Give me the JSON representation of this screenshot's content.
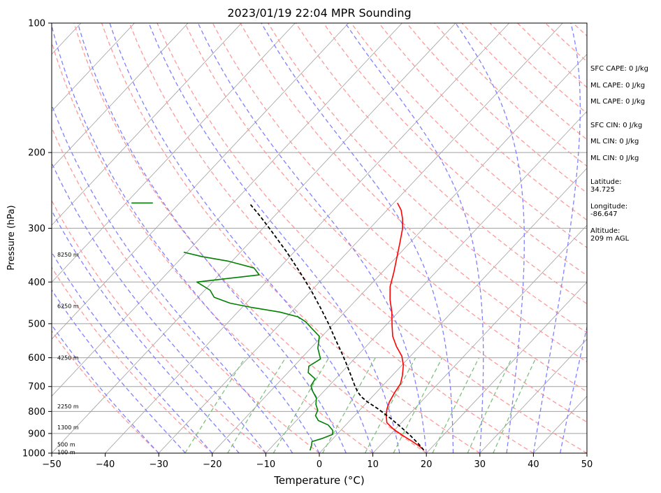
{
  "chart_data": {
    "type": "skew-t",
    "title": "2023/01/19 22:04 MPR Sounding",
    "xlabel": "Temperature (°C)",
    "ylabel": "Pressure (hPa)",
    "xlim": [
      -50,
      50
    ],
    "ylim": [
      1000,
      100
    ],
    "y_scale": "log",
    "grid": true,
    "x_ticks": [
      -50,
      -40,
      -30,
      -20,
      -10,
      0,
      10,
      20,
      30,
      40,
      50
    ],
    "y_ticks": [
      100,
      200,
      300,
      400,
      500,
      600,
      700,
      800,
      900,
      1000
    ],
    "series": [
      {
        "color": "#ff0000",
        "points": [
          {
            "p": 984,
            "t": 19.0
          },
          {
            "p": 965,
            "t": 17.6
          },
          {
            "p": 940,
            "t": 15.4
          },
          {
            "p": 910,
            "t": 12.5
          },
          {
            "p": 880,
            "t": 9.7
          },
          {
            "p": 850,
            "t": 7.3
          },
          {
            "p": 820,
            "t": 6.0
          },
          {
            "p": 790,
            "t": 4.9
          },
          {
            "p": 760,
            "t": 4.1
          },
          {
            "p": 720,
            "t": 3.4
          },
          {
            "p": 690,
            "t": 3.0
          },
          {
            "p": 660,
            "t": 1.9
          },
          {
            "p": 625,
            "t": 0.3
          },
          {
            "p": 595,
            "t": -1.6
          },
          {
            "p": 565,
            "t": -4.3
          },
          {
            "p": 535,
            "t": -6.8
          },
          {
            "p": 505,
            "t": -8.8
          },
          {
            "p": 470,
            "t": -11.2
          },
          {
            "p": 440,
            "t": -13.7
          },
          {
            "p": 410,
            "t": -16.0
          },
          {
            "p": 380,
            "t": -17.8
          },
          {
            "p": 350,
            "t": -19.9
          },
          {
            "p": 325,
            "t": -21.8
          },
          {
            "p": 300,
            "t": -23.9
          },
          {
            "p": 285,
            "t": -25.6
          },
          {
            "p": 272,
            "t": -27.4
          },
          {
            "p": 262,
            "t": -29.3
          }
        ]
      },
      {
        "color": "#008000",
        "points": [
          {
            "p": 986,
            "t": -2.2
          },
          {
            "p": 960,
            "t": -2.8
          },
          {
            "p": 940,
            "t": -3.4
          },
          {
            "p": 925,
            "t": -2.1
          },
          {
            "p": 905,
            "t": -0.8
          },
          {
            "p": 885,
            "t": -1.5
          },
          {
            "p": 860,
            "t": -3.3
          },
          {
            "p": 840,
            "t": -5.9
          },
          {
            "p": 818,
            "t": -7.3
          },
          {
            "p": 795,
            "t": -7.8
          },
          {
            "p": 770,
            "t": -9.2
          },
          {
            "p": 745,
            "t": -10.2
          },
          {
            "p": 718,
            "t": -12.1
          },
          {
            "p": 697,
            "t": -13.4
          },
          {
            "p": 672,
            "t": -13.8
          },
          {
            "p": 650,
            "t": -16.2
          },
          {
            "p": 628,
            "t": -17.2
          },
          {
            "p": 604,
            "t": -16.3
          },
          {
            "p": 570,
            "t": -18.7
          },
          {
            "p": 535,
            "t": -20.5
          },
          {
            "p": 515,
            "t": -23.0
          },
          {
            "p": 495,
            "t": -25.6
          },
          {
            "p": 482,
            "t": -27.9
          },
          {
            "p": 470,
            "t": -32.1
          },
          {
            "p": 458,
            "t": -38.4
          },
          {
            "p": 448,
            "t": -43.0
          },
          {
            "p": 434,
            "t": -47.0
          },
          {
            "p": 418,
            "t": -49.0
          },
          {
            "p": 400,
            "t": -52.9
          },
          {
            "p": 385,
            "t": -42.5
          },
          {
            "p": 371,
            "t": -44.7
          },
          {
            "p": 358,
            "t": -50.6
          },
          {
            "p": 349,
            "t": -56.5
          },
          {
            "p": 341,
            "t": -60.6
          }
        ]
      },
      {
        "color": "#000000",
        "dashed": true,
        "points": [
          {
            "p": 984,
            "t": 19.0
          },
          {
            "p": 950,
            "t": 16.8
          },
          {
            "p": 910,
            "t": 13.9
          },
          {
            "p": 870,
            "t": 10.7
          },
          {
            "p": 830,
            "t": 7.2
          },
          {
            "p": 790,
            "t": 3.3
          },
          {
            "p": 760,
            "t": 0.0
          },
          {
            "p": 740,
            "t": -2.0
          },
          {
            "p": 720,
            "t": -3.6
          },
          {
            "p": 700,
            "t": -5.0
          },
          {
            "p": 660,
            "t": -7.7
          },
          {
            "p": 620,
            "t": -10.6
          },
          {
            "p": 580,
            "t": -13.8
          },
          {
            "p": 540,
            "t": -17.3
          },
          {
            "p": 500,
            "t": -21.0
          },
          {
            "p": 460,
            "t": -25.2
          },
          {
            "p": 420,
            "t": -29.9
          },
          {
            "p": 380,
            "t": -35.3
          },
          {
            "p": 340,
            "t": -41.5
          },
          {
            "p": 300,
            "t": -48.8
          },
          {
            "p": 280,
            "t": -52.9
          },
          {
            "p": 262,
            "t": -57.0
          }
        ]
      }
    ],
    "dewpoint_stub": {
      "p": 262,
      "t_from": -79,
      "t_to": -75
    },
    "height_labels": [
      {
        "text": "100 m",
        "p": 995
      },
      {
        "text": "500 m",
        "p": 955
      },
      {
        "text": "1300 m",
        "p": 870
      },
      {
        "text": "2250 m",
        "p": 778
      },
      {
        "text": "4250 m",
        "p": 600
      },
      {
        "text": "6250 m",
        "p": 455
      },
      {
        "text": "8250 m",
        "p": 345
      }
    ]
  },
  "sidebar": {
    "sfc_cape": "SFC CAPE: 0 J/kg",
    "ml_cape_1": "ML CAPE: 0 J/kg",
    "ml_cape_2": "ML CAPE: 0 J/kg",
    "sfc_cin": "SFC CIN: 0 J/kg",
    "ml_cin_1": "ML CIN: 0 J/kg",
    "ml_cin_2": "ML CIN: 0 J/kg",
    "latitude_label": "Latitude:",
    "latitude_value": "34.725",
    "longitude_label": "Longitude:",
    "longitude_value": "-86.647",
    "altitude_label": "Altitude:",
    "altitude_value": "209 m AGL"
  },
  "colors": {
    "temperature": "#ff0000",
    "dewpoint": "#008000",
    "parcel": "#000000",
    "isotherm": "#a0a0a0",
    "dry_adiabat": "#ff9999",
    "moist_adiabat": "#8080ff",
    "mixing_ratio": "#80c080",
    "isobar": "#a0a0a0"
  }
}
